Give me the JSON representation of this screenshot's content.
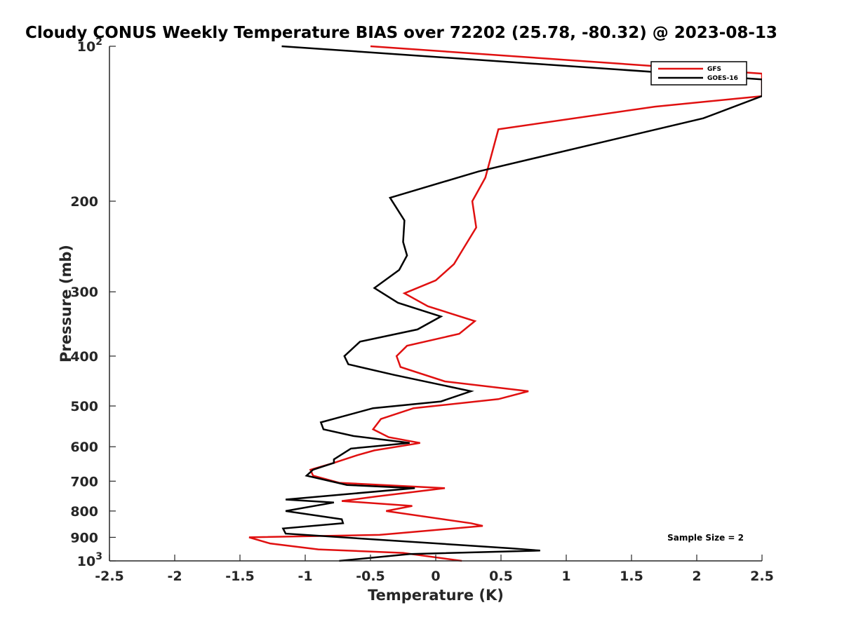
{
  "chart_data": {
    "type": "line",
    "title": "Cloudy CONUS Weekly Temperature BIAS over 72202 (25.78, -80.32) @ 2023-08-13",
    "xlabel": "Temperature (K)",
    "ylabel": "Pressure (mb)",
    "xlim": [
      -2.5,
      2.5
    ],
    "ylim": [
      100,
      1000
    ],
    "y_scale": "log",
    "y_reversed": true,
    "x_ticks": [
      "-2.5",
      "-2",
      "-1.5",
      "-1",
      "-0.5",
      "0",
      "0.5",
      "1",
      "1.5",
      "2",
      "2.5"
    ],
    "y_ticks": [
      {
        "value": 100,
        "base": "10",
        "exp": "2"
      },
      {
        "value": 200,
        "label": "200"
      },
      {
        "value": 300,
        "label": "300"
      },
      {
        "value": 400,
        "label": "400"
      },
      {
        "value": 500,
        "label": "500"
      },
      {
        "value": 600,
        "label": "600"
      },
      {
        "value": 700,
        "label": "700"
      },
      {
        "value": 800,
        "label": "800"
      },
      {
        "value": 900,
        "label": "900"
      },
      {
        "value": 1000,
        "base": "10",
        "exp": "3"
      }
    ],
    "legend_position": "top-right",
    "grid": false,
    "annotation": "Sample Size = 2",
    "series": [
      {
        "name": "GFS",
        "color": "#e01010",
        "points": [
          [
            -0.5,
            100
          ],
          [
            2.5,
            113
          ],
          [
            2.5,
            125
          ],
          [
            1.68,
            131
          ],
          [
            0.48,
            145
          ],
          [
            0.38,
            180
          ],
          [
            0.28,
            200
          ],
          [
            0.31,
            225
          ],
          [
            0.2,
            250
          ],
          [
            0.14,
            265
          ],
          [
            0.0,
            285
          ],
          [
            -0.24,
            302
          ],
          [
            -0.06,
            320
          ],
          [
            0.3,
            342
          ],
          [
            0.18,
            362
          ],
          [
            -0.22,
            382
          ],
          [
            -0.3,
            400
          ],
          [
            -0.27,
            420
          ],
          [
            0.07,
            448
          ],
          [
            0.71,
            468
          ],
          [
            0.48,
            485
          ],
          [
            -0.17,
            505
          ],
          [
            -0.42,
            530
          ],
          [
            -0.48,
            555
          ],
          [
            -0.36,
            575
          ],
          [
            -0.12,
            590
          ],
          [
            -0.47,
            610
          ],
          [
            -0.6,
            623
          ],
          [
            -0.78,
            645
          ],
          [
            -0.96,
            665
          ],
          [
            -0.94,
            683
          ],
          [
            -0.74,
            705
          ],
          [
            0.07,
            722
          ],
          [
            -0.46,
            750
          ],
          [
            -0.72,
            765
          ],
          [
            -0.18,
            782
          ],
          [
            -0.38,
            800
          ],
          [
            0.27,
            845
          ],
          [
            0.36,
            855
          ],
          [
            -0.43,
            890
          ],
          [
            -1.43,
            900
          ],
          [
            -1.27,
            925
          ],
          [
            -0.9,
            950
          ],
          [
            -0.25,
            965
          ],
          [
            0.2,
            1000
          ]
        ]
      },
      {
        "name": "GOES-16",
        "color": "#000000",
        "points": [
          [
            -1.18,
            100
          ],
          [
            2.5,
            116
          ],
          [
            2.5,
            125
          ],
          [
            2.05,
            138
          ],
          [
            0.33,
            175
          ],
          [
            -0.35,
            197
          ],
          [
            -0.24,
            218
          ],
          [
            -0.25,
            240
          ],
          [
            -0.22,
            255
          ],
          [
            -0.28,
            272
          ],
          [
            -0.47,
            295
          ],
          [
            -0.29,
            315
          ],
          [
            0.04,
            335
          ],
          [
            -0.14,
            355
          ],
          [
            -0.58,
            375
          ],
          [
            -0.7,
            400
          ],
          [
            -0.67,
            415
          ],
          [
            -0.32,
            435
          ],
          [
            0.27,
            468
          ],
          [
            0.04,
            490
          ],
          [
            -0.48,
            505
          ],
          [
            -0.88,
            538
          ],
          [
            -0.86,
            555
          ],
          [
            -0.63,
            572
          ],
          [
            -0.2,
            590
          ],
          [
            -0.65,
            605
          ],
          [
            -0.78,
            635
          ],
          [
            -0.78,
            645
          ],
          [
            -0.94,
            665
          ],
          [
            -0.99,
            683
          ],
          [
            -0.68,
            712
          ],
          [
            -0.16,
            722
          ],
          [
            -1.15,
            760
          ],
          [
            -0.78,
            770
          ],
          [
            -1.15,
            800
          ],
          [
            -0.72,
            830
          ],
          [
            -0.71,
            845
          ],
          [
            -1.17,
            865
          ],
          [
            -1.15,
            885
          ],
          [
            0.57,
            945
          ],
          [
            0.8,
            955
          ],
          [
            -0.2,
            970
          ],
          [
            -0.74,
            1000
          ]
        ]
      }
    ]
  }
}
